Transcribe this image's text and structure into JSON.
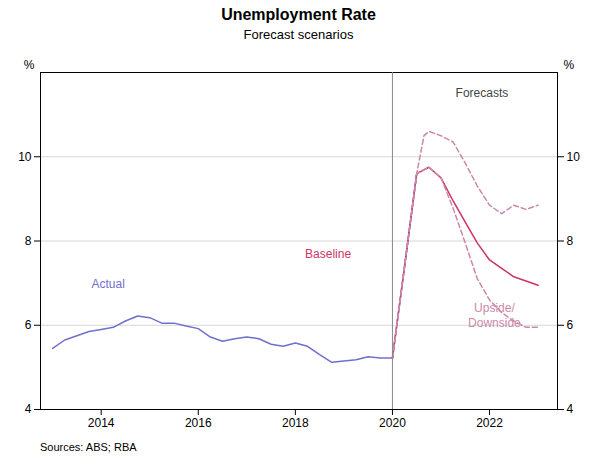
{
  "chart_data": {
    "type": "line",
    "title": "Unemployment Rate",
    "subtitle": "Forecast scenarios",
    "ylabel": "%",
    "y2label": "%",
    "source": "Sources:  ABS; RBA",
    "xlim": [
      2012.75,
      2023.4
    ],
    "xticks": [
      2014,
      2016,
      2018,
      2020,
      2022
    ],
    "ylim": [
      4,
      12
    ],
    "yticks": [
      4,
      6,
      8,
      10
    ],
    "y2lim": [
      4,
      12
    ],
    "y2ticks": [
      4,
      6,
      8,
      10
    ],
    "grid": "y",
    "vline": {
      "x": 2020.0,
      "color": "#888888"
    },
    "series": [
      {
        "color": "#7070cc",
        "line_style": "solid",
        "x": [
          2013.0,
          2013.25,
          2013.5,
          2013.75,
          2014.0,
          2014.25,
          2014.5,
          2014.75,
          2015.0,
          2015.25,
          2015.5,
          2015.75,
          2016.0,
          2016.25,
          2016.5,
          2016.75,
          2017.0,
          2017.25,
          2017.5,
          2017.75,
          2018.0,
          2018.25,
          2018.5,
          2018.75,
          2019.0,
          2019.25,
          2019.5,
          2019.75,
          2020.0,
          2020.25,
          2020.5
        ],
        "values": [
          5.45,
          5.65,
          5.75,
          5.85,
          5.9,
          5.95,
          6.1,
          6.22,
          6.18,
          6.05,
          6.05,
          5.98,
          5.92,
          5.72,
          5.62,
          5.68,
          5.72,
          5.68,
          5.55,
          5.5,
          5.58,
          5.5,
          5.3,
          5.12,
          5.15,
          5.18,
          5.25,
          5.22,
          5.22,
          7.4,
          9.6
        ]
      },
      {
        "color": "#cc3366",
        "line_style": "solid",
        "x": [
          2020.0,
          2020.25,
          2020.5,
          2020.75,
          2021.0,
          2021.25,
          2021.5,
          2021.75,
          2022.0,
          2022.25,
          2022.5,
          2022.75,
          2023.0
        ],
        "values": [
          5.22,
          7.4,
          9.6,
          9.75,
          9.5,
          8.95,
          8.45,
          7.95,
          7.55,
          7.35,
          7.15,
          7.05,
          6.95
        ]
      },
      {
        "color": "#cc88aa",
        "line_style": "dashed",
        "x": [
          2020.0,
          2020.25,
          2020.5,
          2020.65,
          2020.75,
          2021.0,
          2021.25,
          2021.5,
          2021.75,
          2022.0,
          2022.25,
          2022.5,
          2022.75,
          2023.0
        ],
        "values": [
          5.22,
          7.4,
          9.6,
          10.5,
          10.6,
          10.5,
          10.35,
          9.85,
          9.3,
          8.85,
          8.65,
          8.85,
          8.75,
          8.85
        ]
      },
      {
        "color": "#cc88aa",
        "line_style": "dashed",
        "x": [
          2020.0,
          2020.25,
          2020.5,
          2020.75,
          2021.0,
          2021.25,
          2021.5,
          2021.75,
          2022.0,
          2022.25,
          2022.5,
          2022.75,
          2023.0
        ],
        "values": [
          5.22,
          7.4,
          9.6,
          9.75,
          9.5,
          8.78,
          7.95,
          7.1,
          6.6,
          6.3,
          6.1,
          5.95,
          5.95
        ]
      }
    ],
    "annotations": [
      {
        "text": "Actual",
        "x": 2013.8,
        "y": 7.0,
        "color": "#7070cc"
      },
      {
        "text": "Baseline",
        "x": 2018.2,
        "y": 7.7,
        "color": "#cc3366"
      },
      {
        "text": "Upside/\nDownside",
        "x": 2022.1,
        "y": 6.55,
        "color": "#cc88aa"
      },
      {
        "text": "Forecasts",
        "x": 2021.3,
        "y": 11.65,
        "color": "#444444"
      }
    ]
  }
}
